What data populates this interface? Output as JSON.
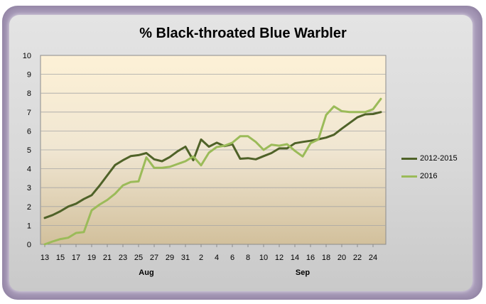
{
  "chart_data": {
    "type": "line",
    "title": "% Black-throated Blue Warbler",
    "x_tick_labels": [
      "13",
      "15",
      "17",
      "19",
      "21",
      "23",
      "25",
      "27",
      "29",
      "31",
      "2",
      "4",
      "6",
      "8",
      "10",
      "12",
      "14",
      "16",
      "18",
      "20",
      "22",
      "24"
    ],
    "month_labels": [
      "Aug",
      "Sep"
    ],
    "ylim": [
      0,
      10
    ],
    "y_ticks": [
      0,
      1,
      2,
      3,
      4,
      5,
      6,
      7,
      8,
      9,
      10
    ],
    "grid": true,
    "legend_position": "right",
    "series": [
      {
        "name": "2012-2015",
        "color": "#4f6228",
        "values": [
          1.4,
          1.55,
          1.75,
          2.0,
          2.15,
          2.4,
          2.6,
          3.1,
          3.65,
          4.2,
          4.45,
          4.67,
          4.72,
          4.83,
          4.5,
          4.4,
          4.62,
          4.93,
          5.17,
          4.45,
          5.55,
          5.17,
          5.38,
          5.2,
          5.3,
          4.53,
          4.56,
          4.5,
          4.67,
          4.83,
          5.08,
          5.08,
          5.35,
          5.42,
          5.48,
          5.56,
          5.65,
          5.8,
          6.12,
          6.42,
          6.72,
          6.88,
          6.9,
          7.0
        ]
      },
      {
        "name": "2016",
        "color": "#9bbb59",
        "values": [
          0.0,
          0.15,
          0.28,
          0.35,
          0.6,
          0.65,
          1.8,
          2.1,
          2.35,
          2.68,
          3.12,
          3.3,
          3.33,
          4.6,
          4.05,
          4.05,
          4.1,
          4.25,
          4.4,
          4.65,
          4.18,
          4.85,
          5.15,
          5.22,
          5.38,
          5.72,
          5.72,
          5.42,
          5.0,
          5.27,
          5.22,
          5.3,
          4.95,
          4.65,
          5.35,
          5.55,
          6.85,
          7.3,
          7.05,
          7.0,
          7.0,
          7.0,
          7.15,
          7.7
        ]
      }
    ]
  }
}
